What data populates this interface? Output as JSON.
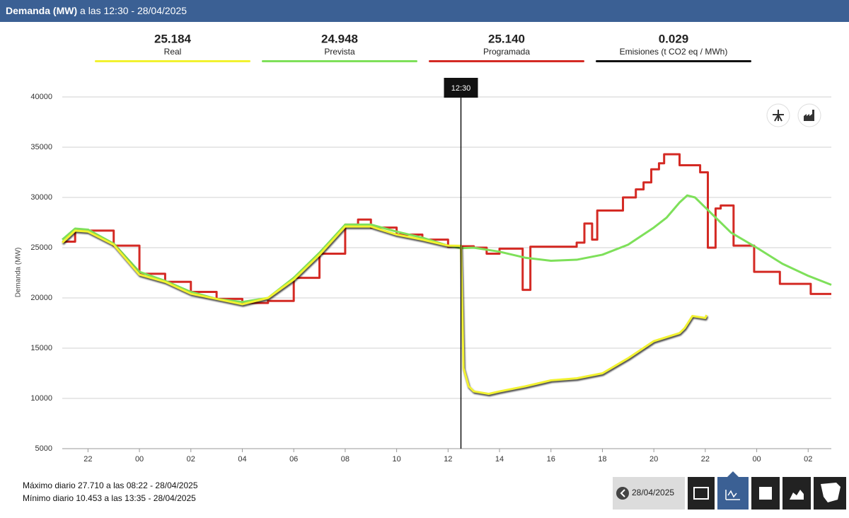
{
  "header": {
    "title": "Demanda (MW)",
    "subtitle": "a las 12:30 - 28/04/2025"
  },
  "stats": [
    {
      "value": "25.184",
      "label": "Real",
      "color": "#f2f230"
    },
    {
      "value": "24.948",
      "label": "Prevista",
      "color": "#7ee05a"
    },
    {
      "value": "25.140",
      "label": "Programada",
      "color": "#d42a24"
    },
    {
      "value": "0.029",
      "label": "Emisiones (t CO2 eq / MWh)",
      "color": "#111111"
    }
  ],
  "footer": {
    "max": "Máximo diario 27.710 a las 08:22 - 28/04/2025",
    "min": "Mínimo diario 10.453 a las 13:35 - 28/04/2025",
    "date": "28/04/2025"
  },
  "chart_data": {
    "type": "line",
    "y_label": "Demanda (MW)",
    "xlim": [
      21,
      50.9
    ],
    "ylim": [
      5000,
      40000
    ],
    "xticks": [
      {
        "value": 22,
        "label": "22"
      },
      {
        "value": 24,
        "label": "00"
      },
      {
        "value": 26,
        "label": "02"
      },
      {
        "value": 28,
        "label": "04"
      },
      {
        "value": 30,
        "label": "06"
      },
      {
        "value": 32,
        "label": "08"
      },
      {
        "value": 34,
        "label": "10"
      },
      {
        "value": 36,
        "label": "12"
      },
      {
        "value": 38,
        "label": "14"
      },
      {
        "value": 40,
        "label": "16"
      },
      {
        "value": 42,
        "label": "18"
      },
      {
        "value": 44,
        "label": "20"
      },
      {
        "value": 46,
        "label": "22"
      },
      {
        "value": 48,
        "label": "00"
      },
      {
        "value": 50,
        "label": "02"
      }
    ],
    "yticks": [
      5000,
      10000,
      15000,
      20000,
      25000,
      30000,
      35000,
      40000
    ],
    "grid": true,
    "marker": {
      "x": 36.5,
      "label": "12:30"
    },
    "series": [
      {
        "name": "Programada",
        "color": "#d42a24",
        "step": true,
        "x": [
          21,
          21.5,
          22,
          23,
          24,
          25,
          26,
          27,
          28,
          29,
          30,
          31,
          32,
          32.5,
          33,
          34,
          35,
          36,
          36.5,
          37,
          37.5,
          38,
          38.9,
          39.2,
          40,
          41,
          41.3,
          41.6,
          41.8,
          42.8,
          43.3,
          43.6,
          43.9,
          44.2,
          44.4,
          45,
          45.8,
          46.1,
          46.4,
          46.6,
          47.1,
          47.9,
          48.9,
          50.1,
          50.9
        ],
        "values": [
          25600,
          26800,
          26700,
          25200,
          22400,
          21600,
          20600,
          19900,
          19500,
          19700,
          22000,
          24400,
          27300,
          27800,
          27000,
          26300,
          25800,
          25100,
          25140,
          25000,
          24400,
          24900,
          20800,
          25100,
          25100,
          25500,
          27400,
          25800,
          28700,
          30000,
          30800,
          31500,
          32800,
          33400,
          34300,
          33200,
          32500,
          25000,
          28900,
          29200,
          25200,
          22600,
          21400,
          20400,
          20400
        ]
      },
      {
        "name": "Prevista",
        "color": "#7ee05a",
        "x": [
          21,
          21.5,
          22,
          23,
          24,
          25,
          26,
          27,
          28,
          29,
          30,
          31,
          32,
          33,
          34,
          35,
          36,
          36.5,
          37,
          38,
          39,
          40,
          41,
          42,
          43,
          44,
          44.5,
          45,
          45.3,
          45.6,
          46,
          47,
          48,
          49,
          50,
          50.9
        ],
        "values": [
          25800,
          26900,
          26800,
          25400,
          22600,
          21700,
          20600,
          19900,
          19600,
          20000,
          22000,
          24500,
          27300,
          27300,
          26600,
          26000,
          25200,
          24948,
          25000,
          24600,
          24000,
          23700,
          23800,
          24300,
          25300,
          27000,
          28000,
          29500,
          30200,
          30000,
          29000,
          26500,
          25000,
          23400,
          22200,
          21300
        ]
      },
      {
        "name": "Real",
        "color": "#f2f230",
        "x": [
          21,
          21.5,
          22,
          23,
          24,
          25,
          26,
          27,
          28,
          29,
          30,
          31,
          32,
          33,
          34,
          35,
          36,
          36.5,
          36.6,
          36.8,
          37,
          37.58,
          38,
          39,
          40,
          41,
          42,
          43,
          44,
          45,
          45.2,
          45.5,
          46,
          46.05
        ],
        "values": [
          25500,
          26700,
          26600,
          25300,
          22320,
          21600,
          20420,
          19900,
          19370,
          20000,
          21830,
          24300,
          27110,
          27100,
          26300,
          25800,
          25200,
          25184,
          13000,
          11200,
          10700,
          10453,
          10700,
          11200,
          11800,
          12000,
          12500,
          14000,
          15700,
          16500,
          17000,
          18200,
          18000,
          18300
        ]
      }
    ]
  }
}
